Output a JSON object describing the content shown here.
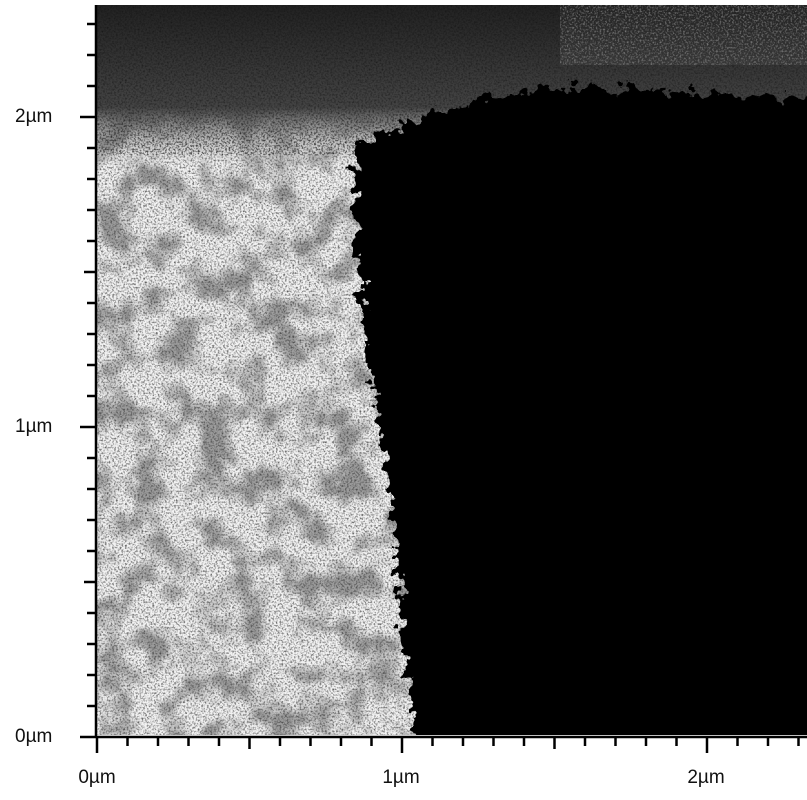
{
  "x_axis": {
    "labels": [
      "0µm",
      "1µm",
      "2µm"
    ]
  },
  "y_axis": {
    "labels": [
      "0µm",
      "1µm",
      "2µm"
    ]
  }
}
